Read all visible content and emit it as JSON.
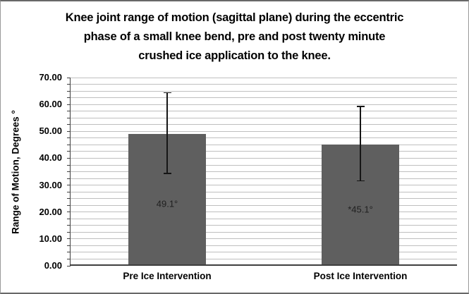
{
  "figure": {
    "title_lines": [
      "Knee joint range of motion (sagittal plane) during the eccentric",
      "phase of a small knee bend, pre and post twenty minute",
      "crushed ice application to the knee."
    ]
  },
  "chart_data": {
    "type": "bar",
    "title": "Knee joint range of motion (sagittal plane) during the eccentric phase of a small knee bend, pre and post twenty minute crushed ice application to the knee.",
    "categories": [
      "Pre Ice Intervention",
      "Post Ice Intervention"
    ],
    "values": [
      49.1,
      45.1
    ],
    "bar_labels": [
      "49.1°",
      "*45.1°"
    ],
    "error_bars": [
      {
        "high": 64.3,
        "low": 34.4
      },
      {
        "high": 59.2,
        "low": 31.6
      }
    ],
    "xlabel": "",
    "ylabel": "Range of Motion, Degrees °",
    "ylim": [
      0,
      70
    ],
    "y_major_unit": 10,
    "y_minor_unit": 2.5,
    "y_tick_labels": [
      "0.00",
      "10.00",
      "20.00",
      "30.00",
      "40.00",
      "50.00",
      "60.00",
      "70.00"
    ],
    "grid": "horizontal-minor",
    "legend": "none",
    "bar_color": "#5f5f5f",
    "gridline_color": "#bfbfbf",
    "axis_color": "#3f3f3f",
    "error_bar_color": "#161616",
    "bar_label_color": "#1f1f1f"
  }
}
